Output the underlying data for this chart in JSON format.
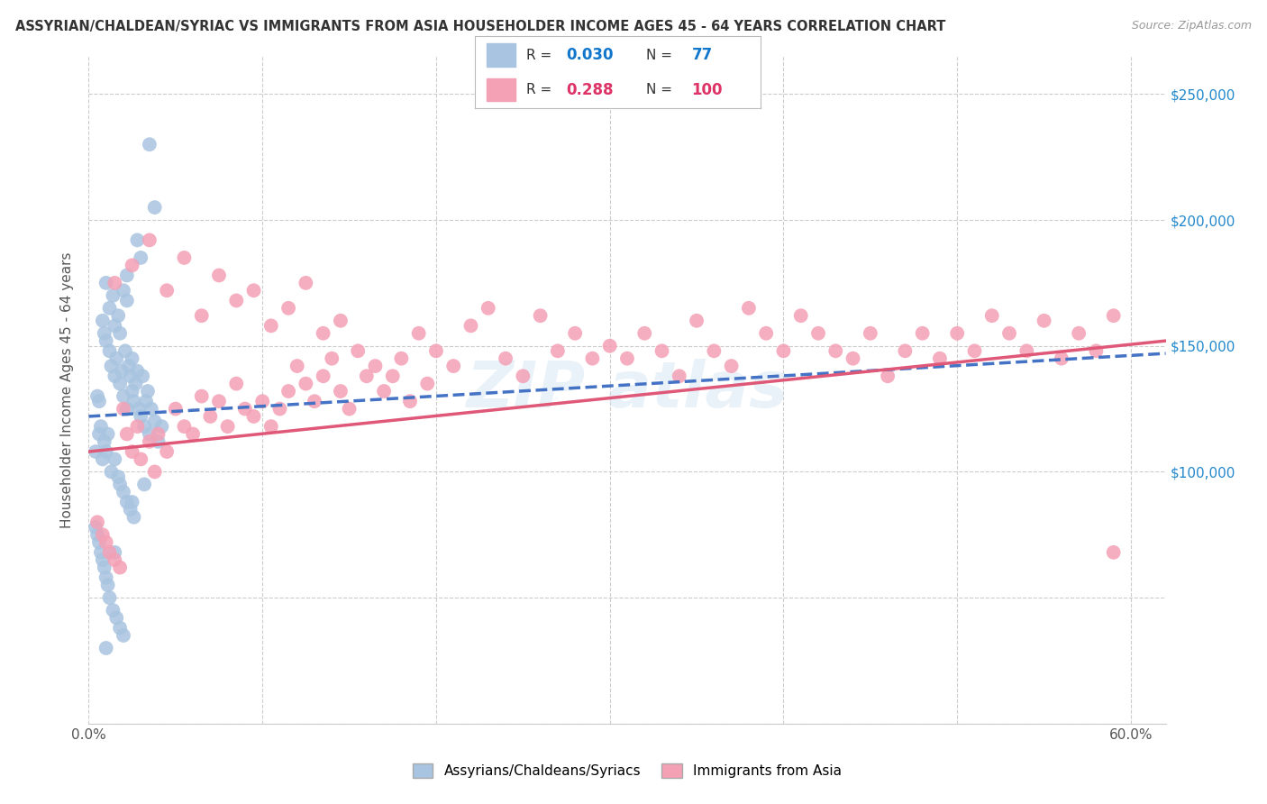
{
  "title": "ASSYRIAN/CHALDEAN/SYRIAC VS IMMIGRANTS FROM ASIA HOUSEHOLDER INCOME AGES 45 - 64 YEARS CORRELATION CHART",
  "source": "Source: ZipAtlas.com",
  "ylabel": "Householder Income Ages 45 - 64 years",
  "xlim": [
    0.0,
    0.62
  ],
  "ylim": [
    0,
    265000
  ],
  "xticks": [
    0.0,
    0.1,
    0.2,
    0.3,
    0.4,
    0.5,
    0.6
  ],
  "xticklabels": [
    "0.0%",
    "",
    "",
    "",
    "",
    "",
    "60.0%"
  ],
  "ytick_positions": [
    0,
    50000,
    100000,
    150000,
    200000,
    250000
  ],
  "ytick_right_labels": [
    "",
    "",
    "$100,000",
    "$150,000",
    "$200,000",
    "$250,000"
  ],
  "blue_color": "#a8c4e0",
  "pink_color": "#f4a0b5",
  "blue_line_color": "#4472c4",
  "pink_line_color": "#e05878",
  "legend_label1": "Assyrians/Chaldeans/Syriacs",
  "legend_label2": "Immigrants from Asia",
  "blue_R": "0.030",
  "blue_N": "77",
  "pink_R": "0.288",
  "pink_N": "100",
  "blue_trend_x0": 0.0,
  "blue_trend_y0": 122000,
  "blue_trend_x1": 0.62,
  "blue_trend_y1": 147000,
  "pink_trend_x0": 0.0,
  "pink_trend_y0": 108000,
  "pink_trend_x1": 0.62,
  "pink_trend_y1": 152000,
  "blue_scatter_x": [
    0.005,
    0.006,
    0.008,
    0.009,
    0.01,
    0.01,
    0.012,
    0.012,
    0.013,
    0.014,
    0.015,
    0.015,
    0.016,
    0.017,
    0.018,
    0.018,
    0.019,
    0.02,
    0.02,
    0.021,
    0.022,
    0.022,
    0.023,
    0.024,
    0.025,
    0.025,
    0.026,
    0.027,
    0.028,
    0.029,
    0.03,
    0.031,
    0.032,
    0.033,
    0.034,
    0.035,
    0.036,
    0.038,
    0.04,
    0.042,
    0.004,
    0.006,
    0.007,
    0.008,
    0.009,
    0.01,
    0.011,
    0.013,
    0.015,
    0.017,
    0.018,
    0.02,
    0.022,
    0.024,
    0.026,
    0.004,
    0.005,
    0.006,
    0.007,
    0.008,
    0.009,
    0.01,
    0.011,
    0.012,
    0.014,
    0.016,
    0.018,
    0.02,
    0.025,
    0.03,
    0.035,
    0.038,
    0.022,
    0.028,
    0.032,
    0.015,
    0.01
  ],
  "blue_scatter_y": [
    130000,
    128000,
    160000,
    155000,
    175000,
    152000,
    165000,
    148000,
    142000,
    170000,
    138000,
    158000,
    145000,
    162000,
    135000,
    155000,
    140000,
    172000,
    130000,
    148000,
    125000,
    168000,
    142000,
    138000,
    132000,
    145000,
    128000,
    135000,
    140000,
    125000,
    122000,
    138000,
    118000,
    128000,
    132000,
    115000,
    125000,
    120000,
    112000,
    118000,
    108000,
    115000,
    118000,
    105000,
    112000,
    108000,
    115000,
    100000,
    105000,
    98000,
    95000,
    92000,
    88000,
    85000,
    82000,
    78000,
    75000,
    72000,
    68000,
    65000,
    62000,
    58000,
    55000,
    50000,
    45000,
    42000,
    38000,
    35000,
    88000,
    185000,
    230000,
    205000,
    178000,
    192000,
    95000,
    68000,
    30000
  ],
  "pink_scatter_x": [
    0.005,
    0.008,
    0.01,
    0.012,
    0.015,
    0.018,
    0.02,
    0.022,
    0.025,
    0.028,
    0.03,
    0.035,
    0.038,
    0.04,
    0.045,
    0.05,
    0.055,
    0.06,
    0.065,
    0.07,
    0.075,
    0.08,
    0.085,
    0.09,
    0.095,
    0.1,
    0.105,
    0.11,
    0.115,
    0.12,
    0.125,
    0.13,
    0.135,
    0.14,
    0.145,
    0.15,
    0.155,
    0.16,
    0.165,
    0.17,
    0.175,
    0.18,
    0.185,
    0.19,
    0.195,
    0.2,
    0.21,
    0.22,
    0.23,
    0.24,
    0.25,
    0.26,
    0.27,
    0.28,
    0.29,
    0.3,
    0.31,
    0.32,
    0.33,
    0.34,
    0.35,
    0.36,
    0.37,
    0.38,
    0.39,
    0.4,
    0.41,
    0.42,
    0.43,
    0.44,
    0.45,
    0.46,
    0.47,
    0.48,
    0.49,
    0.5,
    0.51,
    0.52,
    0.53,
    0.54,
    0.55,
    0.56,
    0.57,
    0.58,
    0.59,
    0.015,
    0.025,
    0.035,
    0.045,
    0.055,
    0.065,
    0.075,
    0.085,
    0.095,
    0.105,
    0.115,
    0.125,
    0.135,
    0.145,
    0.59
  ],
  "pink_scatter_y": [
    80000,
    75000,
    72000,
    68000,
    65000,
    62000,
    125000,
    115000,
    108000,
    118000,
    105000,
    112000,
    100000,
    115000,
    108000,
    125000,
    118000,
    115000,
    130000,
    122000,
    128000,
    118000,
    135000,
    125000,
    122000,
    128000,
    118000,
    125000,
    132000,
    142000,
    135000,
    128000,
    138000,
    145000,
    132000,
    125000,
    148000,
    138000,
    142000,
    132000,
    138000,
    145000,
    128000,
    155000,
    135000,
    148000,
    142000,
    158000,
    165000,
    145000,
    138000,
    162000,
    148000,
    155000,
    145000,
    150000,
    145000,
    155000,
    148000,
    138000,
    160000,
    148000,
    142000,
    165000,
    155000,
    148000,
    162000,
    155000,
    148000,
    145000,
    155000,
    138000,
    148000,
    155000,
    145000,
    155000,
    148000,
    162000,
    155000,
    148000,
    160000,
    145000,
    155000,
    148000,
    162000,
    175000,
    182000,
    192000,
    172000,
    185000,
    162000,
    178000,
    168000,
    172000,
    158000,
    165000,
    175000,
    155000,
    160000,
    68000
  ]
}
